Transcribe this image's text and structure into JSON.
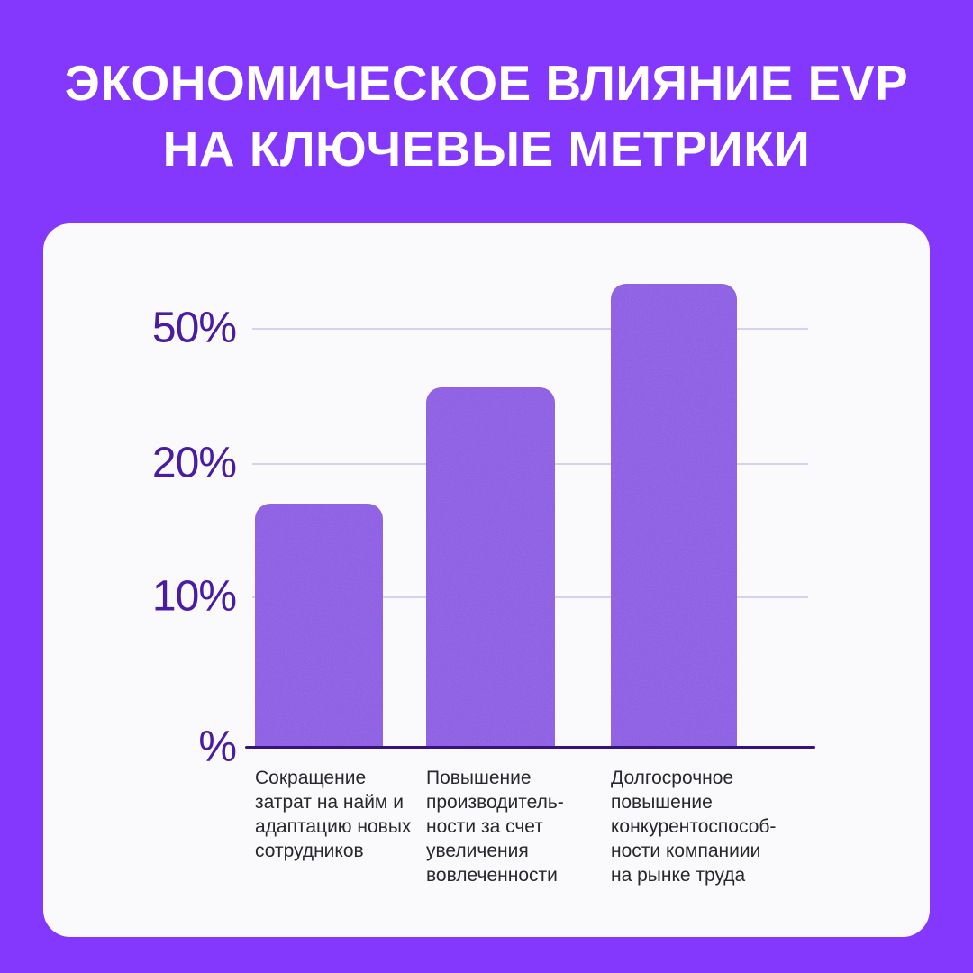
{
  "header": {
    "title_line1": "ЭКОНОМИЧЕСКОЕ ВЛИЯНИЕ EVP",
    "title_line2": "НА КЛЮЧЕВЫЕ МЕТРИКИ"
  },
  "colors": {
    "background": "#8438FE",
    "card": "#FAF9FC",
    "bar": "#8A5CE2",
    "tick_text": "#4A1BA3",
    "axis_line": "#371380",
    "gridline": "#D9CFEF",
    "label_text": "#28272C",
    "title_text": "#FFFFFF"
  },
  "chart_data": {
    "type": "bar",
    "title": "ЭКОНОМИЧЕСКОЕ ВЛИЯНИЕ EVP НА КЛЮЧЕВЫЕ МЕТРИКИ",
    "unit": "%",
    "categories": [
      "Сокращение\nзатрат на найм и\nадаптацию новых\nсотрудников",
      "Повышение\nпроизводитель-\nности за счет\nувеличения\nвовлеченности",
      "Долгосрочное\nповышение\nконкурентоспособ-\nности компаниии\nна рынке труда"
    ],
    "values": [
      17,
      37,
      60
    ],
    "yticks": [
      {
        "label": "50%",
        "value": 50
      },
      {
        "label": "20%",
        "value": 20
      },
      {
        "label": "10%",
        "value": 10
      },
      {
        "label": "%",
        "value": 0
      }
    ],
    "xlabel": "",
    "ylabel": "",
    "ylim": [
      0,
      65
    ],
    "grid": true,
    "y_axis_nonlinear": true,
    "legend": null
  }
}
